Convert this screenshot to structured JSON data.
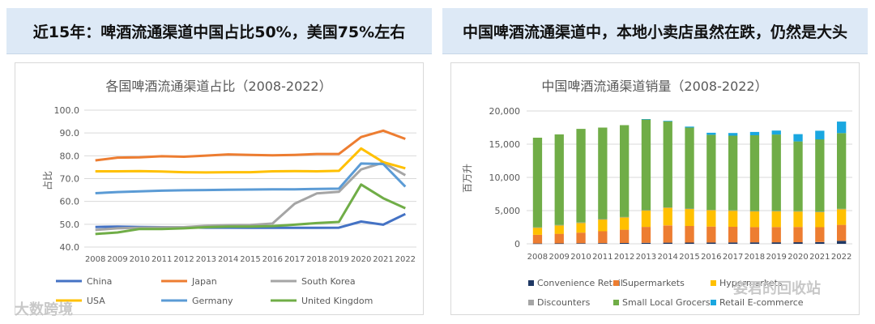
{
  "headers": {
    "left": "近15年：啤酒流通渠道中国占比50%，美国75%左右",
    "right": "中国啤酒流通渠道中，本地小卖店虽然在跌，仍然是大头"
  },
  "watermarks": {
    "left": "大数跨境",
    "right": "姿君的回收站"
  },
  "chart_data": [
    {
      "type": "line",
      "title": "各国啤酒流通渠道占比（2008-2022）",
      "ylabel": "占比",
      "xlabel": "",
      "x": [
        "2008",
        "2009",
        "2010",
        "2011",
        "2012",
        "2013",
        "2014",
        "2015",
        "2016",
        "2017",
        "2018",
        "2019",
        "2020",
        "2021",
        "2022"
      ],
      "ylim": [
        40,
        100
      ],
      "yticks": [
        "40.0",
        "50.0",
        "60.0",
        "70.0",
        "80.0",
        "90.0",
        "100.0"
      ],
      "grid": true,
      "legend_position": "bottom",
      "series": [
        {
          "name": "China",
          "color": "#4472c4",
          "values": [
            48.8,
            49.0,
            48.8,
            48.7,
            48.6,
            48.5,
            48.5,
            48.4,
            48.4,
            48.4,
            48.4,
            48.5,
            51.2,
            49.8,
            54.5
          ]
        },
        {
          "name": "Japan",
          "color": "#ed7d31",
          "values": [
            78.0,
            79.2,
            79.3,
            79.8,
            79.6,
            80.1,
            80.6,
            80.4,
            80.2,
            80.4,
            80.8,
            80.8,
            88.2,
            91.0,
            87.4
          ]
        },
        {
          "name": "South Korea",
          "color": "#a5a5a5",
          "values": [
            47.5,
            48.2,
            48.5,
            48.6,
            48.7,
            49.3,
            49.6,
            49.7,
            50.3,
            59.0,
            63.5,
            64.2,
            74.0,
            77.0,
            71.5
          ]
        },
        {
          "name": "USA",
          "color": "#ffc000",
          "values": [
            73.2,
            73.2,
            73.3,
            73.1,
            72.8,
            72.7,
            72.8,
            72.8,
            73.2,
            73.3,
            73.2,
            73.4,
            83.2,
            77.2,
            74.5
          ]
        },
        {
          "name": "Germany",
          "color": "#5b9bd5",
          "values": [
            63.6,
            64.1,
            64.4,
            64.7,
            64.9,
            65.0,
            65.1,
            65.2,
            65.3,
            65.3,
            65.5,
            65.6,
            76.6,
            76.4,
            66.5
          ]
        },
        {
          "name": "United Kingdom",
          "color": "#70ad47",
          "values": [
            45.7,
            46.4,
            47.9,
            47.9,
            48.2,
            48.7,
            49.0,
            49.0,
            49.2,
            49.8,
            50.5,
            51.0,
            67.4,
            61.4,
            57.0
          ]
        }
      ]
    },
    {
      "type": "bar",
      "stacked": true,
      "title": "中国啤酒流通渠道销量（2008-2022）",
      "ylabel": "百万升",
      "xlabel": "",
      "categories": [
        "2008",
        "2009",
        "2010",
        "2011",
        "2012",
        "2013",
        "2014",
        "2015",
        "2016",
        "2017",
        "2018",
        "2019",
        "2020",
        "2021",
        "2022"
      ],
      "ylim": [
        0,
        20000
      ],
      "yticks": [
        "0",
        "5,000",
        "10,000",
        "15,000",
        "20,000"
      ],
      "grid": true,
      "legend_position": "bottom",
      "series": [
        {
          "name": "Convenience Retail",
          "color": "#1f3864",
          "values": [
            50,
            60,
            80,
            100,
            120,
            150,
            170,
            180,
            200,
            210,
            220,
            230,
            240,
            260,
            450
          ]
        },
        {
          "name": "Supermarkets",
          "color": "#ed7d31",
          "values": [
            1300,
            1450,
            1600,
            1800,
            2000,
            2400,
            2600,
            2500,
            2400,
            2350,
            2300,
            2300,
            2300,
            2250,
            2400
          ]
        },
        {
          "name": "Hypermarkets",
          "color": "#ffc000",
          "values": [
            1100,
            1300,
            1500,
            1800,
            1900,
            2500,
            2700,
            2600,
            2500,
            2450,
            2400,
            2400,
            2350,
            2300,
            2400
          ]
        },
        {
          "name": "Discounters",
          "color": "#a5a5a5",
          "values": [
            20,
            20,
            20,
            20,
            20,
            20,
            20,
            20,
            20,
            20,
            20,
            20,
            20,
            20,
            20
          ]
        },
        {
          "name": "Small Local Grocers",
          "color": "#70ad47",
          "values": [
            13500,
            13650,
            14100,
            13780,
            13830,
            13680,
            12950,
            12200,
            11300,
            11250,
            11400,
            11500,
            10500,
            10900,
            11400
          ]
        },
        {
          "name": "Retail E-commerce",
          "color": "#1aa7e0",
          "values": [
            0,
            0,
            0,
            0,
            0,
            30,
            80,
            150,
            300,
            400,
            500,
            600,
            1100,
            1300,
            1730
          ]
        }
      ]
    }
  ]
}
